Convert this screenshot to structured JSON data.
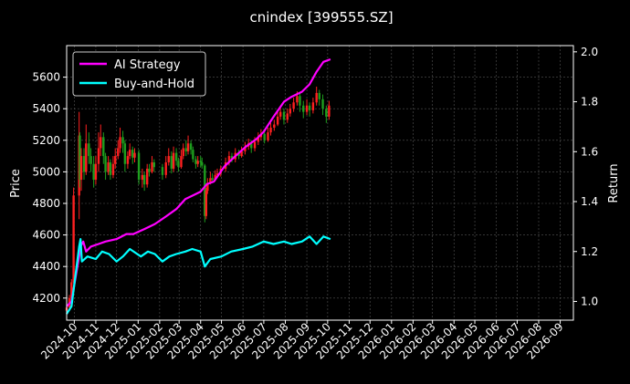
{
  "chart_data": {
    "type": "line",
    "title": "cnindex [399555.SZ]",
    "ylabel_left": "Price",
    "ylabel_right": "Return",
    "xlabel": "",
    "grid": true,
    "legend_position": "top-left",
    "background": "#000000",
    "x_ticks": [
      "2024-10",
      "2024-11",
      "2024-12",
      "2025-01",
      "2025-02",
      "2025-03",
      "2025-04",
      "2025-05",
      "2025-06",
      "2025-07",
      "2025-08",
      "2025-09",
      "2025-10",
      "2025-11",
      "2025-12",
      "2026-01",
      "2026-02",
      "2026-03",
      "2026-04",
      "2026-05",
      "2026-06",
      "2026-07",
      "2026-08",
      "2026-09"
    ],
    "x_range": [
      "2024-09-20",
      "2026-09-20"
    ],
    "left_axis": {
      "ylim": [
        4060,
        5800
      ],
      "ticks": [
        4200,
        4400,
        4600,
        4800,
        5000,
        5200,
        5400,
        5600
      ]
    },
    "right_axis": {
      "ylim": [
        0.925,
        2.025
      ],
      "ticks": [
        1.0,
        1.2,
        1.4,
        1.6,
        1.8,
        2.0
      ]
    },
    "series": [
      {
        "name": "AI Strategy",
        "axis": "right",
        "color": "#ff00ff",
        "points": [
          [
            "2024-09-20",
            0.98
          ],
          [
            "2024-09-27",
            1.0
          ],
          [
            "2024-10-08",
            1.18
          ],
          [
            "2024-10-10",
            1.22
          ],
          [
            "2024-10-14",
            1.24
          ],
          [
            "2024-10-18",
            1.2
          ],
          [
            "2024-10-25",
            1.22
          ],
          [
            "2024-11-05",
            1.23
          ],
          [
            "2024-11-15",
            1.24
          ],
          [
            "2024-12-01",
            1.25
          ],
          [
            "2024-12-15",
            1.27
          ],
          [
            "2024-12-25",
            1.27
          ],
          [
            "2025-01-10",
            1.29
          ],
          [
            "2025-01-25",
            1.31
          ],
          [
            "2025-02-10",
            1.34
          ],
          [
            "2025-02-25",
            1.37
          ],
          [
            "2025-03-10",
            1.41
          ],
          [
            "2025-03-25",
            1.43
          ],
          [
            "2025-04-01",
            1.44
          ],
          [
            "2025-04-10",
            1.47
          ],
          [
            "2025-04-20",
            1.48
          ],
          [
            "2025-05-05",
            1.54
          ],
          [
            "2025-05-20",
            1.58
          ],
          [
            "2025-06-05",
            1.62
          ],
          [
            "2025-06-20",
            1.65
          ],
          [
            "2025-07-01",
            1.68
          ],
          [
            "2025-07-15",
            1.74
          ],
          [
            "2025-07-30",
            1.8
          ],
          [
            "2025-08-10",
            1.82
          ],
          [
            "2025-08-25",
            1.84
          ],
          [
            "2025-09-05",
            1.87
          ],
          [
            "2025-09-15",
            1.92
          ],
          [
            "2025-09-25",
            1.96
          ],
          [
            "2025-10-05",
            1.97
          ]
        ]
      },
      {
        "name": "Buy-and-Hold",
        "axis": "right",
        "color": "#00ffff",
        "points": [
          [
            "2024-09-20",
            0.95
          ],
          [
            "2024-09-27",
            0.98
          ],
          [
            "2024-10-08",
            1.22
          ],
          [
            "2024-10-10",
            1.25
          ],
          [
            "2024-10-12",
            1.16
          ],
          [
            "2024-10-20",
            1.18
          ],
          [
            "2024-11-01",
            1.17
          ],
          [
            "2024-11-10",
            1.2
          ],
          [
            "2024-11-20",
            1.19
          ],
          [
            "2024-12-01",
            1.16
          ],
          [
            "2024-12-10",
            1.18
          ],
          [
            "2024-12-20",
            1.21
          ],
          [
            "2025-01-05",
            1.18
          ],
          [
            "2025-01-15",
            1.2
          ],
          [
            "2025-01-25",
            1.19
          ],
          [
            "2025-02-05",
            1.16
          ],
          [
            "2025-02-15",
            1.18
          ],
          [
            "2025-02-25",
            1.19
          ],
          [
            "2025-03-10",
            1.2
          ],
          [
            "2025-03-20",
            1.21
          ],
          [
            "2025-04-01",
            1.2
          ],
          [
            "2025-04-07",
            1.14
          ],
          [
            "2025-04-15",
            1.17
          ],
          [
            "2025-05-01",
            1.18
          ],
          [
            "2025-05-15",
            1.2
          ],
          [
            "2025-06-01",
            1.21
          ],
          [
            "2025-06-15",
            1.22
          ],
          [
            "2025-07-01",
            1.24
          ],
          [
            "2025-07-15",
            1.23
          ],
          [
            "2025-07-30",
            1.24
          ],
          [
            "2025-08-10",
            1.23
          ],
          [
            "2025-08-25",
            1.24
          ],
          [
            "2025-09-05",
            1.26
          ],
          [
            "2025-09-15",
            1.23
          ],
          [
            "2025-09-25",
            1.26
          ],
          [
            "2025-10-05",
            1.25
          ]
        ]
      }
    ],
    "candles": [
      [
        "2024-09-20",
        4120,
        4140,
        4090,
        4180
      ],
      [
        "2024-09-24",
        4140,
        4200,
        4130,
        4220
      ],
      [
        "2024-09-27",
        4200,
        4300,
        4190,
        4320
      ],
      [
        "2024-09-30",
        4300,
        4850,
        4290,
        4900
      ],
      [
        "2024-10-08",
        4850,
        5230,
        4700,
        5380
      ],
      [
        "2024-10-09",
        5230,
        4950,
        4900,
        5250
      ],
      [
        "2024-10-11",
        4950,
        5100,
        4880,
        5150
      ],
      [
        "2024-10-15",
        5100,
        5000,
        4950,
        5150
      ],
      [
        "2024-10-18",
        5000,
        5180,
        4980,
        5300
      ],
      [
        "2024-10-22",
        5180,
        5100,
        5050,
        5250
      ],
      [
        "2024-10-25",
        5100,
        5050,
        5000,
        5150
      ],
      [
        "2024-10-29",
        5050,
        4950,
        4900,
        5100
      ],
      [
        "2024-11-01",
        4950,
        5050,
        4920,
        5100
      ],
      [
        "2024-11-05",
        5050,
        5150,
        5000,
        5250
      ],
      [
        "2024-11-08",
        5150,
        5220,
        5100,
        5300
      ],
      [
        "2024-11-12",
        5220,
        5100,
        5050,
        5250
      ],
      [
        "2024-11-15",
        5100,
        5000,
        4950,
        5120
      ],
      [
        "2024-11-19",
        5000,
        5060,
        4980,
        5100
      ],
      [
        "2024-11-22",
        5060,
        4980,
        4950,
        5080
      ],
      [
        "2024-11-26",
        4980,
        5050,
        4960,
        5100
      ],
      [
        "2024-11-29",
        5050,
        5100,
        5020,
        5150
      ],
      [
        "2024-12-03",
        5100,
        5150,
        5080,
        5200
      ],
      [
        "2024-12-06",
        5150,
        5220,
        5120,
        5280
      ],
      [
        "2024-12-10",
        5220,
        5180,
        5120,
        5260
      ],
      [
        "2024-12-13",
        5180,
        5050,
        5000,
        5200
      ],
      [
        "2024-12-17",
        5050,
        5100,
        5020,
        5130
      ],
      [
        "2024-12-20",
        5100,
        5140,
        5080,
        5180
      ],
      [
        "2024-12-24",
        5140,
        5090,
        5050,
        5160
      ],
      [
        "2024-12-27",
        5090,
        5120,
        5060,
        5150
      ],
      [
        "2025-01-02",
        5120,
        4950,
        4920,
        5140
      ],
      [
        "2025-01-07",
        4950,
        4980,
        4900,
        5020
      ],
      [
        "2025-01-10",
        4980,
        4920,
        4880,
        5000
      ],
      [
        "2025-01-14",
        4920,
        5020,
        4900,
        5050
      ],
      [
        "2025-01-17",
        5020,
        5000,
        4970,
        5050
      ],
      [
        "2025-01-21",
        5000,
        5060,
        4990,
        5100
      ],
      [
        "2025-01-24",
        5060,
        5030,
        5000,
        5080
      ],
      [
        "2025-02-05",
        5030,
        4980,
        4950,
        5050
      ],
      [
        "2025-02-10",
        4980,
        5060,
        4960,
        5100
      ],
      [
        "2025-02-14",
        5060,
        5100,
        5040,
        5150
      ],
      [
        "2025-02-18",
        5100,
        5020,
        4990,
        5130
      ],
      [
        "2025-02-21",
        5020,
        5120,
        5000,
        5160
      ],
      [
        "2025-02-25",
        5120,
        5070,
        5040,
        5150
      ],
      [
        "2025-02-28",
        5070,
        5030,
        5000,
        5090
      ],
      [
        "2025-03-04",
        5030,
        5100,
        5020,
        5140
      ],
      [
        "2025-03-07",
        5100,
        5150,
        5080,
        5180
      ],
      [
        "2025-03-11",
        5150,
        5130,
        5100,
        5200
      ],
      [
        "2025-03-14",
        5130,
        5180,
        5110,
        5230
      ],
      [
        "2025-03-18",
        5180,
        5140,
        5110,
        5200
      ],
      [
        "2025-03-21",
        5140,
        5080,
        5060,
        5160
      ],
      [
        "2025-03-25",
        5080,
        5050,
        5020,
        5100
      ],
      [
        "2025-03-28",
        5050,
        5070,
        5030,
        5100
      ],
      [
        "2025-04-01",
        5070,
        5060,
        5030,
        5100
      ],
      [
        "2025-04-03",
        5060,
        5040,
        5020,
        5090
      ],
      [
        "2025-04-07",
        5040,
        4720,
        4680,
        5050
      ],
      [
        "2025-04-09",
        4720,
        4880,
        4700,
        4900
      ],
      [
        "2025-04-11",
        4880,
        4930,
        4860,
        4960
      ],
      [
        "2025-04-15",
        4930,
        4960,
        4920,
        5000
      ],
      [
        "2025-04-18",
        4960,
        4950,
        4930,
        4990
      ],
      [
        "2025-04-22",
        4950,
        4980,
        4940,
        5010
      ],
      [
        "2025-04-25",
        4980,
        4990,
        4960,
        5020
      ],
      [
        "2025-04-30",
        4990,
        5020,
        4970,
        5040
      ],
      [
        "2025-05-07",
        5020,
        5060,
        5000,
        5090
      ],
      [
        "2025-05-12",
        5060,
        5100,
        5040,
        5130
      ],
      [
        "2025-05-16",
        5100,
        5080,
        5060,
        5120
      ],
      [
        "2025-05-21",
        5080,
        5120,
        5060,
        5150
      ],
      [
        "2025-05-26",
        5120,
        5100,
        5080,
        5140
      ],
      [
        "2025-05-30",
        5100,
        5130,
        5090,
        5160
      ],
      [
        "2025-06-04",
        5130,
        5160,
        5110,
        5190
      ],
      [
        "2025-06-09",
        5160,
        5180,
        5140,
        5210
      ],
      [
        "2025-06-13",
        5180,
        5150,
        5120,
        5200
      ],
      [
        "2025-06-18",
        5150,
        5190,
        5130,
        5220
      ],
      [
        "2025-06-23",
        5190,
        5220,
        5170,
        5250
      ],
      [
        "2025-06-27",
        5220,
        5240,
        5200,
        5270
      ],
      [
        "2025-07-02",
        5240,
        5200,
        5180,
        5260
      ],
      [
        "2025-07-07",
        5200,
        5250,
        5190,
        5280
      ],
      [
        "2025-07-11",
        5250,
        5280,
        5230,
        5310
      ],
      [
        "2025-07-16",
        5280,
        5300,
        5260,
        5330
      ],
      [
        "2025-07-21",
        5300,
        5350,
        5290,
        5380
      ],
      [
        "2025-07-25",
        5350,
        5380,
        5330,
        5410
      ],
      [
        "2025-07-30",
        5380,
        5330,
        5300,
        5400
      ],
      [
        "2025-08-04",
        5330,
        5370,
        5310,
        5400
      ],
      [
        "2025-08-08",
        5370,
        5400,
        5350,
        5430
      ],
      [
        "2025-08-13",
        5400,
        5440,
        5380,
        5470
      ],
      [
        "2025-08-18",
        5440,
        5480,
        5420,
        5510
      ],
      [
        "2025-08-22",
        5480,
        5420,
        5380,
        5500
      ],
      [
        "2025-08-27",
        5420,
        5380,
        5340,
        5450
      ],
      [
        "2025-09-01",
        5380,
        5420,
        5360,
        5460
      ],
      [
        "2025-09-05",
        5420,
        5390,
        5350,
        5440
      ],
      [
        "2025-09-10",
        5390,
        5440,
        5370,
        5470
      ],
      [
        "2025-09-15",
        5440,
        5500,
        5420,
        5540
      ],
      [
        "2025-09-19",
        5500,
        5460,
        5420,
        5520
      ],
      [
        "2025-09-24",
        5460,
        5400,
        5360,
        5490
      ],
      [
        "2025-09-29",
        5400,
        5350,
        5310,
        5420
      ],
      [
        "2025-10-03",
        5350,
        5420,
        5330,
        5450
      ]
    ]
  }
}
